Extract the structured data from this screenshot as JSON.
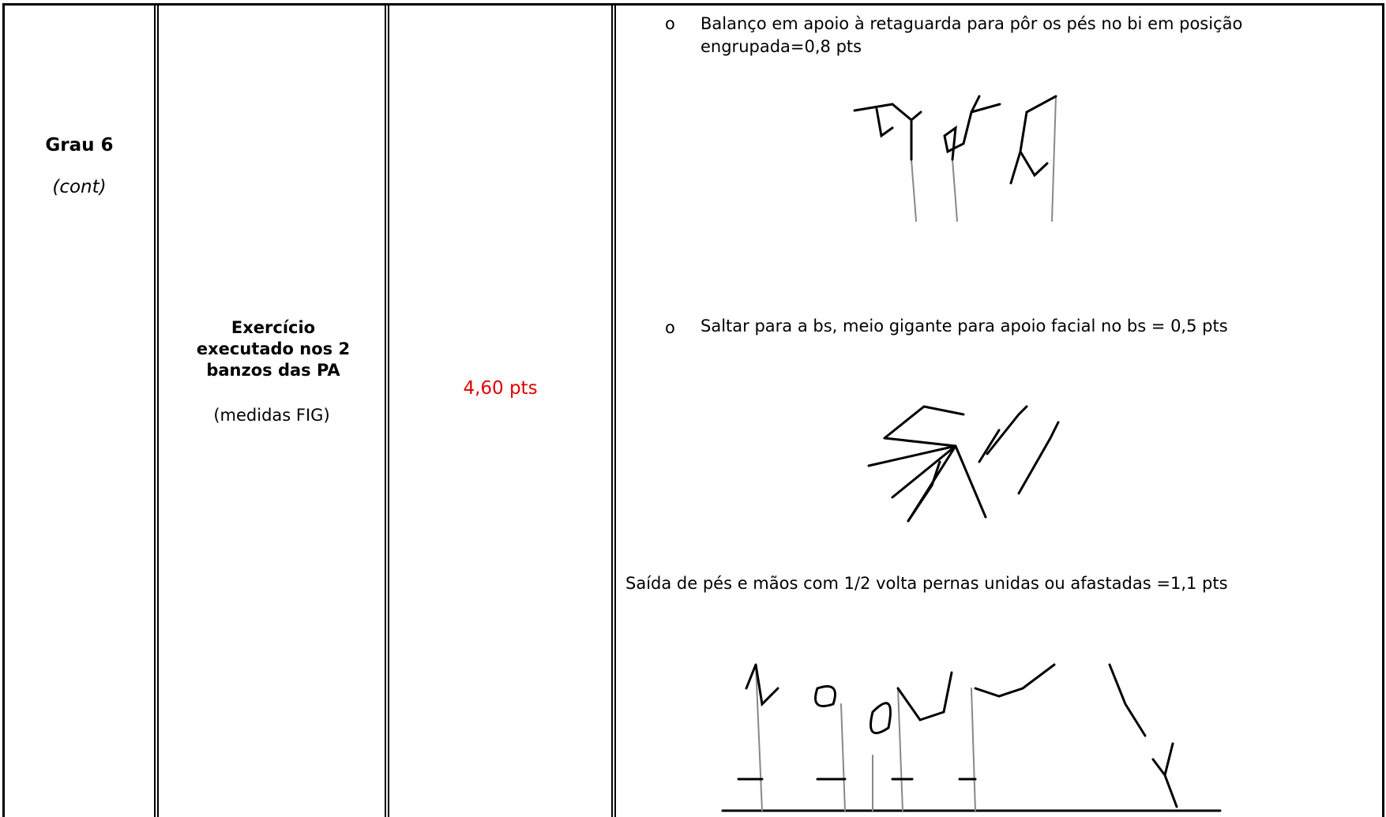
{
  "row": {
    "level": "Grau 6",
    "level_note": "(cont)",
    "exercise": "Exercício executado nos 2 banzos das PA",
    "exercise_note": "(medidas FIG)",
    "score": "4,60 pts",
    "elements": [
      {
        "marker": "o",
        "text": "Balanço em apoio à retaguarda para pôr os pés no bi em posição engrupada=0,8 pts"
      },
      {
        "marker": "o",
        "text": "Saltar para a bs, meio gigante para apoio facial no bs = 0,5 pts"
      },
      {
        "text": "Saída de pés e mãos com 1/2 volta pernas unidas ou afastadas =1,1 pts"
      }
    ]
  }
}
